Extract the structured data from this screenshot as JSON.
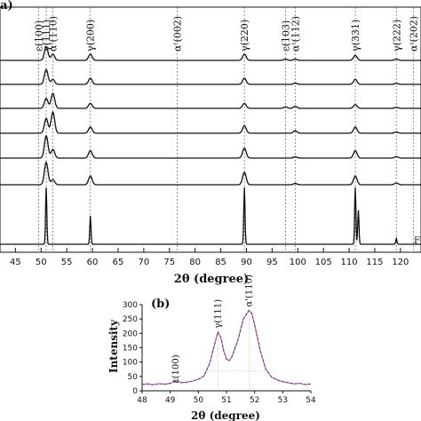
{
  "chart_data": [
    {
      "panel": "(a)",
      "type": "line",
      "xlabel": "2θ (degree)",
      "xlim": [
        42,
        124
      ],
      "x_ticks": [
        45,
        50,
        55,
        60,
        65,
        70,
        75,
        80,
        85,
        90,
        95,
        100,
        105,
        110,
        115,
        120
      ],
      "reflections": [
        {
          "label": "ε(100)",
          "x": 49.5
        },
        {
          "label": "γ(111)",
          "x": 51.0
        },
        {
          "label": "α'(110)",
          "x": 52.3
        },
        {
          "label": "γ(200)",
          "x": 59.6
        },
        {
          "label": "α'(002)",
          "x": 76.5
        },
        {
          "label": "γ(220)",
          "x": 89.6
        },
        {
          "label": "ε(103)",
          "x": 97.6
        },
        {
          "label": "α'(112)",
          "x": 99.5
        },
        {
          "label": "γ(331)",
          "x": 111.2
        },
        {
          "label": "γ(222)",
          "x": 119.2
        },
        {
          "label": "α'(202)",
          "x": 122.5
        }
      ],
      "series": [
        {
          "peaks": [
            {
              "x": 51.0,
              "h": 0.55
            },
            {
              "x": 52.3,
              "h": 0.25
            },
            {
              "x": 59.6,
              "h": 0.25
            },
            {
              "x": 89.6,
              "h": 0.25
            },
            {
              "x": 97.6,
              "h": 0.05
            },
            {
              "x": 99.5,
              "h": 0.05
            },
            {
              "x": 111.2,
              "h": 0.2
            },
            {
              "x": 119.2,
              "h": 0.05
            }
          ]
        },
        {
          "peaks": [
            {
              "x": 51.0,
              "h": 0.6
            },
            {
              "x": 52.3,
              "h": 0.2
            },
            {
              "x": 59.6,
              "h": 0.25
            },
            {
              "x": 89.6,
              "h": 0.25
            },
            {
              "x": 99.5,
              "h": 0.05
            },
            {
              "x": 111.2,
              "h": 0.2
            },
            {
              "x": 119.2,
              "h": 0.04
            }
          ]
        },
        {
          "peaks": [
            {
              "x": 51.0,
              "h": 0.4
            },
            {
              "x": 52.3,
              "h": 0.6
            },
            {
              "x": 59.6,
              "h": 0.2
            },
            {
              "x": 89.6,
              "h": 0.2
            },
            {
              "x": 97.6,
              "h": 0.06
            },
            {
              "x": 99.5,
              "h": 0.08
            },
            {
              "x": 111.2,
              "h": 0.15
            },
            {
              "x": 119.2,
              "h": 0.04
            }
          ]
        },
        {
          "peaks": [
            {
              "x": 51.0,
              "h": 0.6
            },
            {
              "x": 52.3,
              "h": 0.85
            },
            {
              "x": 59.6,
              "h": 0.25
            },
            {
              "x": 89.6,
              "h": 0.3
            },
            {
              "x": 99.5,
              "h": 0.1
            },
            {
              "x": 111.2,
              "h": 0.25
            },
            {
              "x": 119.2,
              "h": 0.05
            }
          ]
        },
        {
          "peaks": [
            {
              "x": 51.0,
              "h": 0.9
            },
            {
              "x": 52.3,
              "h": 0.35
            },
            {
              "x": 59.6,
              "h": 0.3
            },
            {
              "x": 89.6,
              "h": 0.4
            },
            {
              "x": 99.5,
              "h": 0.05
            },
            {
              "x": 111.2,
              "h": 0.3
            },
            {
              "x": 119.2,
              "h": 0.06
            }
          ]
        },
        {
          "peaks": [
            {
              "x": 51.0,
              "h": 0.9
            },
            {
              "x": 52.3,
              "h": 0.2
            },
            {
              "x": 59.6,
              "h": 0.35
            },
            {
              "x": 89.6,
              "h": 0.5
            },
            {
              "x": 99.5,
              "h": 0.05
            },
            {
              "x": 111.2,
              "h": 0.35
            },
            {
              "x": 119.2,
              "h": 0.07
            }
          ]
        },
        {
          "peaks": [
            {
              "x": 51.0,
              "h": 1.0
            },
            {
              "x": 59.6,
              "h": 0.5
            },
            {
              "x": 89.6,
              "h": 1.0
            },
            {
              "x": 111.2,
              "h": 1.0
            },
            {
              "x": 111.8,
              "h": 0.6
            },
            {
              "x": 119.2,
              "h": 0.1
            }
          ]
        }
      ]
    },
    {
      "panel": "(b)",
      "type": "line",
      "xlabel": "2θ (degree)",
      "ylabel": "Intensity",
      "xlim": [
        48,
        54
      ],
      "ylim": [
        0,
        300
      ],
      "x_ticks": [
        48,
        49,
        50,
        51,
        52,
        53,
        54
      ],
      "y_ticks": [
        0,
        50,
        100,
        150,
        200,
        250,
        300
      ],
      "peak_labels": [
        {
          "label": "ε(100)",
          "x": 49.2,
          "y": 14
        },
        {
          "label": "γ(111)",
          "x": 50.7,
          "y": 205
        },
        {
          "label": "α'(110)",
          "x": 51.8,
          "y": 280
        }
      ],
      "points": [
        [
          48.0,
          22
        ],
        [
          48.2,
          24
        ],
        [
          48.4,
          21
        ],
        [
          48.6,
          25
        ],
        [
          48.8,
          23
        ],
        [
          49.0,
          26
        ],
        [
          49.2,
          36
        ],
        [
          49.4,
          28
        ],
        [
          49.6,
          30
        ],
        [
          49.8,
          34
        ],
        [
          50.0,
          40
        ],
        [
          50.2,
          52
        ],
        [
          50.4,
          95
        ],
        [
          50.6,
          170
        ],
        [
          50.7,
          205
        ],
        [
          50.8,
          185
        ],
        [
          50.9,
          140
        ],
        [
          51.0,
          110
        ],
        [
          51.1,
          105
        ],
        [
          51.2,
          120
        ],
        [
          51.4,
          175
        ],
        [
          51.6,
          250
        ],
        [
          51.8,
          280
        ],
        [
          51.9,
          270
        ],
        [
          52.0,
          230
        ],
        [
          52.2,
          140
        ],
        [
          52.4,
          75
        ],
        [
          52.6,
          48
        ],
        [
          52.8,
          38
        ],
        [
          53.0,
          32
        ],
        [
          53.2,
          28
        ],
        [
          53.4,
          24
        ],
        [
          53.6,
          26
        ],
        [
          53.8,
          22
        ],
        [
          54.0,
          24
        ]
      ]
    }
  ],
  "panel_a": {
    "label": "(a)",
    "xlabel": "2θ (degree)",
    "footer_mark": "F"
  },
  "panel_b": {
    "label": "(b)",
    "xlabel": "2θ (degree)",
    "ylabel": "Intensity"
  }
}
